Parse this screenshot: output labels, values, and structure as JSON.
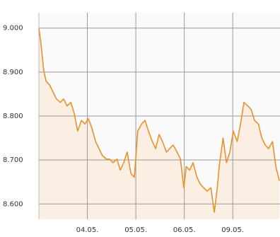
{
  "chart_data": {
    "type": "line",
    "x": [
      0,
      0.04,
      0.1,
      0.15,
      0.22,
      0.29,
      0.36,
      0.44,
      0.51,
      0.58,
      0.66,
      0.73,
      0.8,
      0.88,
      0.95,
      1.02,
      1.09,
      1.17,
      1.24,
      1.31,
      1.39,
      1.46,
      1.53,
      1.61,
      1.68,
      1.75,
      1.82,
      1.9,
      1.97,
      2.04,
      2.12,
      2.19,
      2.26,
      2.34,
      2.41,
      2.48,
      2.55,
      2.63,
      2.7,
      2.77,
      2.85,
      2.92,
      2.99,
      3.04,
      3.11,
      3.18,
      3.26,
      3.33,
      3.4,
      3.47,
      3.55,
      3.62,
      3.68,
      3.72,
      3.8,
      3.87,
      3.94,
      4.01,
      4.09,
      4.16,
      4.23,
      4.31,
      4.38,
      4.45,
      4.53,
      4.6,
      4.67,
      4.74,
      4.82,
      4.89,
      4.96
    ],
    "series": [
      {
        "color": "#e8912c",
        "fill": "#fbeee2",
        "values": [
          9000,
          8968,
          8903,
          8879,
          8871,
          8855,
          8839,
          8831,
          8839,
          8823,
          8831,
          8806,
          8766,
          8790,
          8782,
          8794,
          8774,
          8742,
          8726,
          8710,
          8702,
          8702,
          8694,
          8702,
          8677,
          8694,
          8718,
          8669,
          8661,
          8766,
          8782,
          8790,
          8766,
          8742,
          8726,
          8758,
          8742,
          8718,
          8726,
          8734,
          8718,
          8702,
          8637,
          8685,
          8677,
          8694,
          8661,
          8645,
          8637,
          8629,
          8637,
          8581,
          8637,
          8685,
          8750,
          8694,
          8718,
          8766,
          8742,
          8782,
          8831,
          8823,
          8815,
          8790,
          8782,
          8750,
          8734,
          8726,
          8742,
          8685,
          8653
        ]
      }
    ],
    "xlim": [
      0,
      4.96
    ],
    "xticks": [
      {
        "value": 1,
        "label": "04.05."
      },
      {
        "value": 2,
        "label": "05.05."
      },
      {
        "value": 3,
        "label": "06.05."
      },
      {
        "value": 4,
        "label": "09.05."
      }
    ],
    "ylim": [
      8565,
      9035
    ],
    "yticks": [
      {
        "value": 9000,
        "label": "9.000"
      },
      {
        "value": 8900,
        "label": "8.900"
      },
      {
        "value": 8800,
        "label": "8.800"
      },
      {
        "value": 8700,
        "label": "8.700"
      },
      {
        "value": 8600,
        "label": "8.600"
      }
    ],
    "grid": true
  }
}
